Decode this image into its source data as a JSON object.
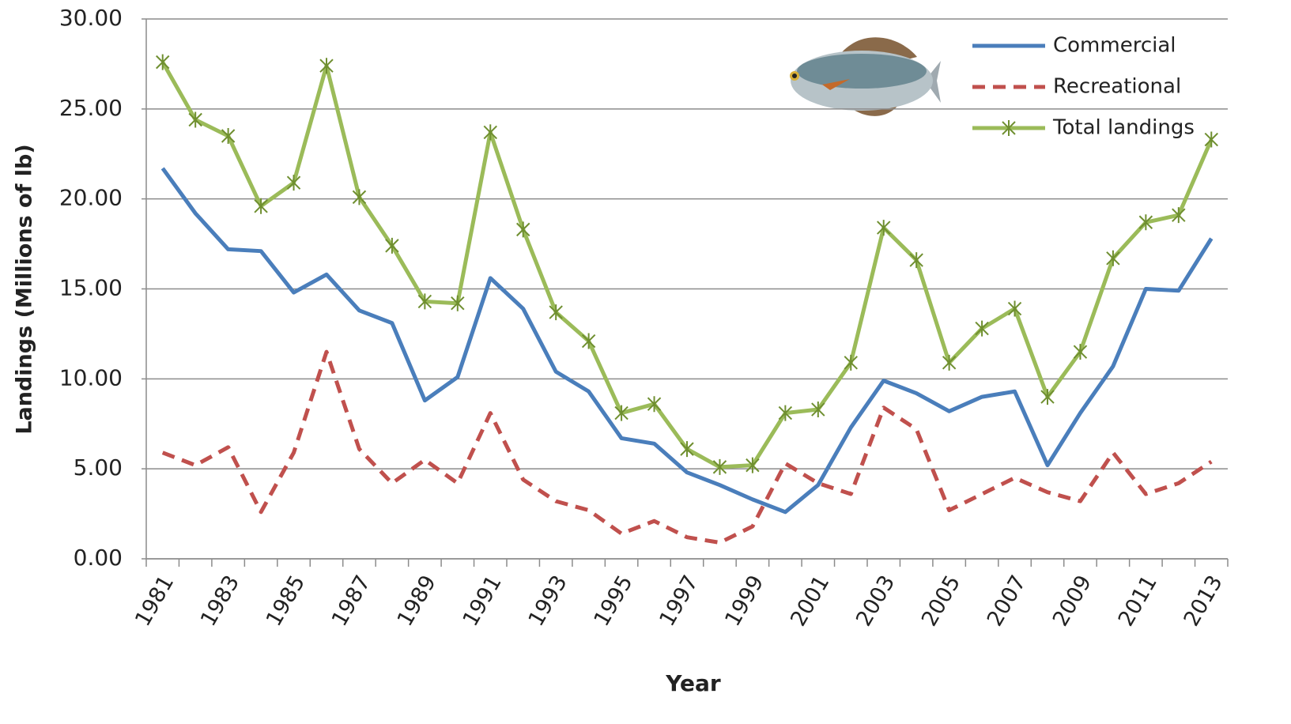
{
  "chart_data": {
    "type": "line",
    "x_label": "Year",
    "y_label": "Landings (Millions of lb)",
    "categories": [
      "1981",
      null,
      "1983",
      null,
      "1985",
      null,
      "1987",
      null,
      "1989",
      null,
      "1991",
      null,
      "1993",
      null,
      "1995",
      null,
      "1997",
      null,
      "1999",
      null,
      "2001",
      null,
      "2003",
      null,
      "2005",
      null,
      "2007",
      null,
      "2009",
      null,
      "2011",
      null,
      "2013"
    ],
    "series": [
      {
        "name": "Commercial",
        "color": "#4a7ebb",
        "line_style": "solid",
        "marker": "none",
        "values": [
          21.7,
          19.2,
          17.2,
          17.1,
          14.8,
          15.8,
          13.8,
          13.1,
          8.8,
          10.1,
          15.6,
          13.9,
          10.4,
          9.3,
          6.7,
          6.4,
          4.8,
          4.1,
          3.3,
          2.6,
          4.1,
          7.3,
          9.9,
          9.2,
          8.2,
          9.0,
          9.3,
          5.2,
          8.1,
          10.7,
          15.0,
          14.9,
          17.8
        ]
      },
      {
        "name": "Recreational",
        "color": "#c0504d",
        "line_style": "dashed",
        "marker": "none",
        "values": [
          5.9,
          5.2,
          6.2,
          2.6,
          5.9,
          11.5,
          6.1,
          4.2,
          5.5,
          4.2,
          8.1,
          4.4,
          3.2,
          2.7,
          1.4,
          2.1,
          1.2,
          0.9,
          1.8,
          5.3,
          4.2,
          3.6,
          8.4,
          7.2,
          2.7,
          3.6,
          4.5,
          3.7,
          3.2,
          5.9,
          3.6,
          4.2,
          5.4
        ]
      },
      {
        "name": "Total landings",
        "color": "#9bbb59",
        "line_style": "solid",
        "marker": "asterisk",
        "values": [
          27.6,
          24.4,
          23.5,
          19.6,
          20.9,
          27.4,
          20.1,
          17.4,
          14.3,
          14.2,
          23.7,
          18.3,
          13.7,
          12.1,
          8.1,
          8.6,
          6.1,
          5.1,
          5.2,
          8.1,
          8.3,
          10.9,
          18.4,
          16.6,
          10.9,
          12.8,
          13.9,
          9.0,
          11.5,
          16.7,
          18.7,
          19.1,
          23.3
        ]
      }
    ],
    "ylim": [
      0,
      30
    ],
    "yticks": [
      {
        "value": 0,
        "label": "0.00"
      },
      {
        "value": 5,
        "label": "5.00"
      },
      {
        "value": 10,
        "label": "10.00"
      },
      {
        "value": 15,
        "label": "15.00"
      },
      {
        "value": 20,
        "label": "20.00"
      },
      {
        "value": 25,
        "label": "25.00"
      },
      {
        "value": 30,
        "label": "30.00"
      }
    ],
    "grid": true,
    "legend": "top-right"
  }
}
